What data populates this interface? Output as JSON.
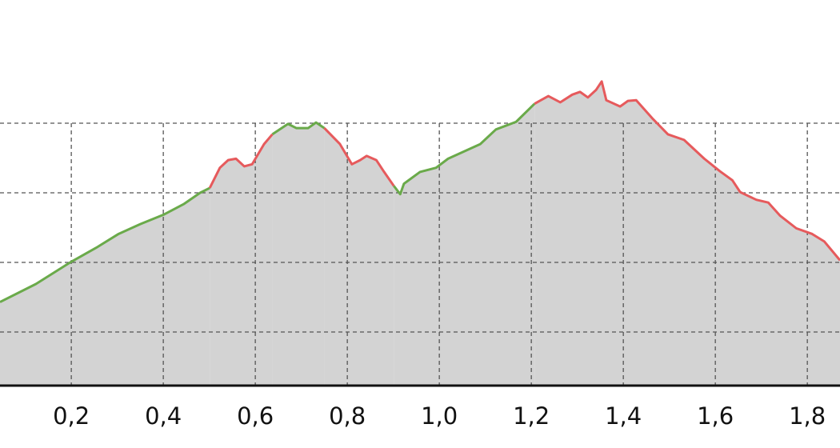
{
  "chart_data": {
    "type": "area-line",
    "x": [
      0.045,
      0.123,
      0.2,
      0.254,
      0.303,
      0.35,
      0.402,
      0.445,
      0.48,
      0.501,
      0.523,
      0.541,
      0.558,
      0.576,
      0.593,
      0.619,
      0.637,
      0.671,
      0.689,
      0.715,
      0.732,
      0.75,
      0.784,
      0.81,
      0.828,
      0.842,
      0.863,
      0.88,
      0.901,
      0.915,
      0.923,
      0.958,
      0.993,
      1.019,
      1.089,
      1.123,
      1.167,
      1.207,
      1.237,
      1.263,
      1.289,
      1.306,
      1.323,
      1.341,
      1.353,
      1.363,
      1.393,
      1.41,
      1.428,
      1.463,
      1.497,
      1.532,
      1.576,
      1.61,
      1.637,
      1.654,
      1.689,
      1.715,
      1.741,
      1.776,
      1.81,
      1.837,
      1.871
    ],
    "series": [
      {
        "color": "#6aaa4a",
        "values": [
          1.43,
          1.69,
          2.01,
          2.21,
          2.41,
          2.55,
          2.69,
          2.84,
          3.0,
          3.07,
          null,
          null,
          null,
          null,
          null,
          null,
          3.84,
          3.99,
          3.93,
          3.93,
          4.01,
          3.93,
          null,
          null,
          null,
          null,
          null,
          null,
          3.1,
          2.98,
          3.13,
          3.3,
          3.36,
          3.49,
          3.7,
          3.91,
          4.02,
          4.28,
          null,
          null,
          null,
          null,
          null,
          null,
          null,
          null,
          null,
          null,
          null,
          null,
          null,
          null,
          null,
          null,
          null,
          null,
          null,
          null,
          null,
          null,
          null,
          null,
          null
        ]
      },
      {
        "color": "#e65a5c",
        "values": [
          null,
          null,
          null,
          null,
          null,
          null,
          null,
          null,
          null,
          3.07,
          3.36,
          3.47,
          3.49,
          3.38,
          3.41,
          3.7,
          3.84,
          null,
          null,
          null,
          null,
          3.93,
          3.7,
          3.41,
          3.47,
          3.53,
          3.47,
          3.3,
          3.1,
          null,
          null,
          null,
          null,
          null,
          null,
          null,
          null,
          4.28,
          4.39,
          4.3,
          4.41,
          4.45,
          4.37,
          4.48,
          4.6,
          4.33,
          4.24,
          4.32,
          4.33,
          4.07,
          3.84,
          3.76,
          3.49,
          3.31,
          3.18,
          3.01,
          2.9,
          2.86,
          2.67,
          2.49,
          2.41,
          2.3,
          2.03
        ]
      }
    ],
    "fill_color": "#d3d3d3",
    "xlim": [
      0.045,
      1.871
    ],
    "ylim": [
      0.23,
      5.77
    ],
    "xticks": [
      {
        "value": 0.2,
        "label": "0,2"
      },
      {
        "value": 0.4,
        "label": "0,4"
      },
      {
        "value": 0.6,
        "label": "0,6"
      },
      {
        "value": 0.8,
        "label": "0,8"
      },
      {
        "value": 1.0,
        "label": "1,0"
      },
      {
        "value": 1.2,
        "label": "1,2"
      },
      {
        "value": 1.4,
        "label": "1,4"
      },
      {
        "value": 1.6,
        "label": "1,6"
      },
      {
        "value": 1.8,
        "label": "1,8"
      }
    ],
    "yticks": [
      1,
      2,
      3,
      4
    ],
    "grid": true
  }
}
